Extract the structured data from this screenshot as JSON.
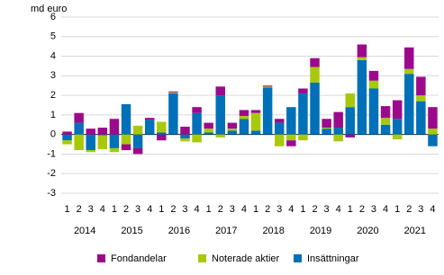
{
  "chart_data": {
    "type": "stacked-bar",
    "y_label": "md euro",
    "categories": [
      "1",
      "2",
      "3",
      "4",
      "1",
      "2",
      "3",
      "4",
      "1",
      "2",
      "3",
      "4",
      "1",
      "2",
      "3",
      "4",
      "1",
      "2",
      "3",
      "4",
      "1",
      "2",
      "3",
      "4",
      "1",
      "2",
      "3",
      "4",
      "1",
      "2",
      "3",
      "4"
    ],
    "years": [
      "2014",
      "2015",
      "2016",
      "2017",
      "2018",
      "2019",
      "2020",
      "2021"
    ],
    "series": [
      {
        "name": "Insättningar",
        "color": "#0070b8",
        "values": [
          -0.3,
          0.6,
          -0.8,
          -0.05,
          -0.7,
          1.55,
          -0.7,
          0.75,
          0.1,
          2.1,
          -0.2,
          1.1,
          0.1,
          2.0,
          0.2,
          0.8,
          0.2,
          2.4,
          0.6,
          1.4,
          2.1,
          2.65,
          0.3,
          0.35,
          1.4,
          3.8,
          2.35,
          0.5,
          0.8,
          3.1,
          1.7,
          -0.6
        ]
      },
      {
        "name": "Noterade aktier",
        "color": "#a8c90a",
        "values": [
          -0.2,
          -0.8,
          -0.1,
          -0.7,
          -0.2,
          -0.5,
          0.45,
          0,
          0.55,
          0.05,
          -0.15,
          -0.4,
          0.2,
          -0.15,
          0.1,
          0.15,
          0.9,
          0.05,
          -0.6,
          -0.3,
          -0.3,
          0.8,
          0.05,
          -0.35,
          0.7,
          0.15,
          0.4,
          0.35,
          -0.25,
          0.25,
          0.3,
          0.3
        ]
      },
      {
        "name": "Fondandelar",
        "color": "#9c0a8c",
        "values": [
          0.15,
          0.5,
          0.3,
          0.35,
          0.8,
          -0.3,
          -0.3,
          0.1,
          -0.3,
          0.05,
          0.4,
          0.3,
          0.3,
          0.45,
          0.3,
          0.3,
          0.15,
          0.05,
          0.2,
          -0.3,
          0.25,
          0.45,
          0.45,
          0.8,
          -0.15,
          0.65,
          0.5,
          0.6,
          0.95,
          1.1,
          0.95,
          1.1
        ]
      }
    ],
    "ylim": [
      -3,
      6
    ],
    "yticks": [
      -3,
      -2,
      -1,
      0,
      1,
      2,
      3,
      4,
      5,
      6
    ],
    "grid": true
  }
}
